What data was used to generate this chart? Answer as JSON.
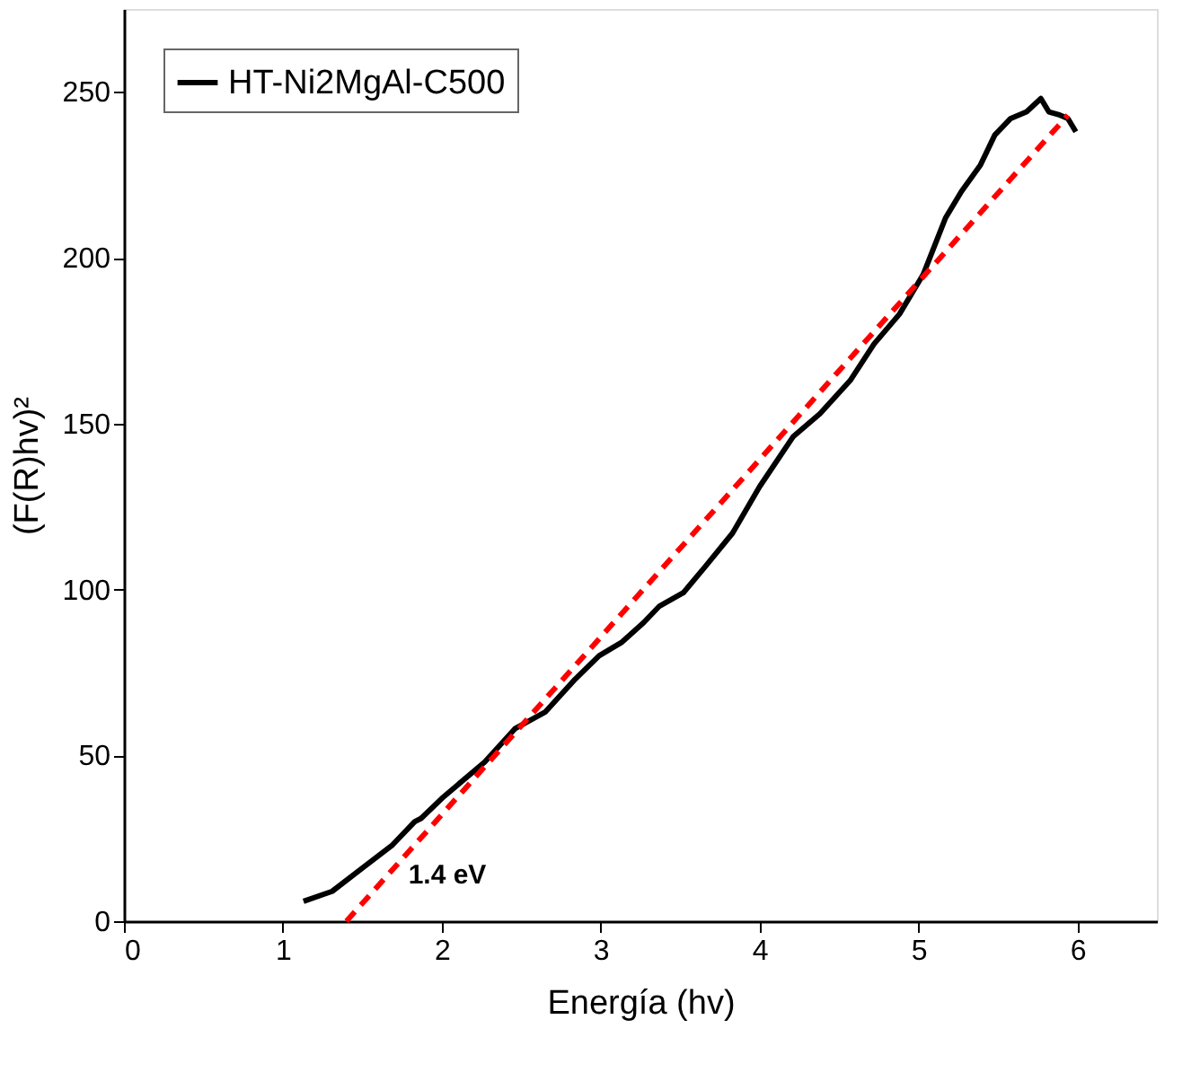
{
  "chart_data": {
    "type": "line",
    "xlabel": "Energía (hv)",
    "ylabel": "(F(R)hv)²",
    "xlim": [
      0,
      6.5
    ],
    "xticks": [
      0,
      1,
      2,
      3,
      4,
      5,
      6
    ],
    "ylim": [
      0,
      275
    ],
    "yticks": [
      0,
      50,
      100,
      150,
      200,
      250
    ],
    "grid": false,
    "legend": "top left",
    "marker": "none",
    "series": [
      {
        "name": "HT-Ni2MgAl-C500",
        "color": "#000000",
        "line_style": "solid",
        "x": [
          1.13,
          1.31,
          1.5,
          1.69,
          1.83,
          1.87,
          2.0,
          2.27,
          2.46,
          2.65,
          2.84,
          2.99,
          3.13,
          3.27,
          3.37,
          3.52,
          3.66,
          3.83,
          4.0,
          4.21,
          4.38,
          4.57,
          4.72,
          4.88,
          5.03,
          5.17,
          5.27,
          5.39,
          5.48,
          5.58,
          5.68,
          5.77,
          5.82,
          5.89,
          5.94,
          5.99
        ],
        "values": [
          6,
          9,
          16,
          23,
          30,
          31,
          37,
          48,
          58,
          63,
          73,
          80,
          84,
          90,
          95,
          99,
          107,
          117,
          131,
          146,
          153,
          163,
          174,
          183,
          195,
          212,
          220,
          228,
          237,
          242,
          244,
          248,
          244,
          243,
          242,
          238
        ]
      },
      {
        "type": "line",
        "color": "#ff0000",
        "line_style": "dashed",
        "x": [
          1.4,
          5.94
        ],
        "values": [
          0,
          243
        ]
      }
    ],
    "annotations": [
      "1.4 eV"
    ]
  }
}
